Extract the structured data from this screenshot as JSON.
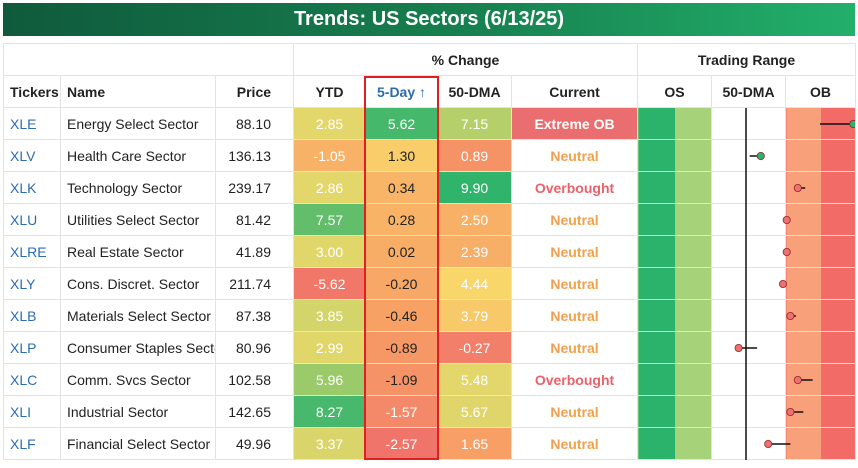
{
  "title": "Trends: US Sectors (6/13/25)",
  "group_headers": {
    "pct_change": "% Change",
    "trading_range": "Trading Range"
  },
  "columns": {
    "tickers": "Tickers",
    "name": "Name",
    "price": "Price",
    "ytd": "YTD",
    "five_day": "5-Day ↑",
    "dma50": "50-DMA",
    "current": "Current",
    "os": "OS",
    "range_dma": "50-DMA",
    "ob": "OB"
  },
  "colors": {
    "banner_start": "#0f5a3c",
    "banner_end": "#22b06b",
    "highlight_border": "#e02020",
    "ticker_link": "#2b6cb0",
    "neutral_text": "#f0a04b",
    "overbought_text": "#e8636a",
    "extreme_ob_bg": "#ea6d6f"
  },
  "rows": [
    {
      "ticker": "XLE",
      "name": "Energy Select Sector",
      "price": "88.10",
      "ytd": "2.85",
      "five_day": "5.62",
      "dma50": "7.15",
      "current": "Extreme OB",
      "status": "extreme",
      "range_pos": 2.9,
      "range_tail": -0.9
    },
    {
      "ticker": "XLV",
      "name": "Health Care Sector",
      "price": "136.13",
      "ytd": "-1.05",
      "five_day": "1.30",
      "dma50": "0.89",
      "current": "Neutral",
      "status": "neutral",
      "range_pos": 0.4,
      "range_tail": -0.3
    },
    {
      "ticker": "XLK",
      "name": "Technology Sector",
      "price": "239.17",
      "ytd": "2.86",
      "five_day": "0.34",
      "dma50": "9.90",
      "current": "Overbought",
      "status": "overbought",
      "range_pos": 1.4,
      "range_tail": 0.2
    },
    {
      "ticker": "XLU",
      "name": "Utilities Select Sector",
      "price": "81.42",
      "ytd": "7.57",
      "five_day": "0.28",
      "dma50": "2.50",
      "current": "Neutral",
      "status": "neutral",
      "range_pos": 1.1,
      "range_tail": 0.0
    },
    {
      "ticker": "XLRE",
      "name": "Real Estate Sector",
      "price": "41.89",
      "ytd": "3.00",
      "five_day": "0.02",
      "dma50": "2.39",
      "current": "Neutral",
      "status": "neutral",
      "range_pos": 1.1,
      "range_tail": 0.0
    },
    {
      "ticker": "XLY",
      "name": "Cons. Discret. Sector",
      "price": "211.74",
      "ytd": "-5.62",
      "five_day": "-0.20",
      "dma50": "4.44",
      "current": "Neutral",
      "status": "neutral",
      "range_pos": 1.0,
      "range_tail": 0.1
    },
    {
      "ticker": "XLB",
      "name": "Materials Select Sector",
      "price": "87.38",
      "ytd": "3.85",
      "five_day": "-0.46",
      "dma50": "3.79",
      "current": "Neutral",
      "status": "neutral",
      "range_pos": 1.2,
      "range_tail": 0.15
    },
    {
      "ticker": "XLP",
      "name": "Consumer Staples Sector",
      "price": "80.96",
      "ytd": "2.99",
      "five_day": "-0.89",
      "dma50": "-0.27",
      "current": "Neutral",
      "status": "neutral",
      "range_pos": -0.2,
      "range_tail": 0.5
    },
    {
      "ticker": "XLC",
      "name": "Comm. Svcs Sector",
      "price": "102.58",
      "ytd": "5.96",
      "five_day": "-1.09",
      "dma50": "5.48",
      "current": "Overbought",
      "status": "overbought",
      "range_pos": 1.4,
      "range_tail": 0.4
    },
    {
      "ticker": "XLI",
      "name": "Industrial Sector",
      "price": "142.65",
      "ytd": "8.27",
      "five_day": "-1.57",
      "dma50": "5.67",
      "current": "Neutral",
      "status": "neutral",
      "range_pos": 1.2,
      "range_tail": 0.35
    },
    {
      "ticker": "XLF",
      "name": "Financial Select Sector",
      "price": "49.96",
      "ytd": "3.37",
      "five_day": "-2.57",
      "dma50": "1.65",
      "current": "Neutral",
      "status": "neutral",
      "range_pos": 0.6,
      "range_tail": 0.6
    }
  ]
}
